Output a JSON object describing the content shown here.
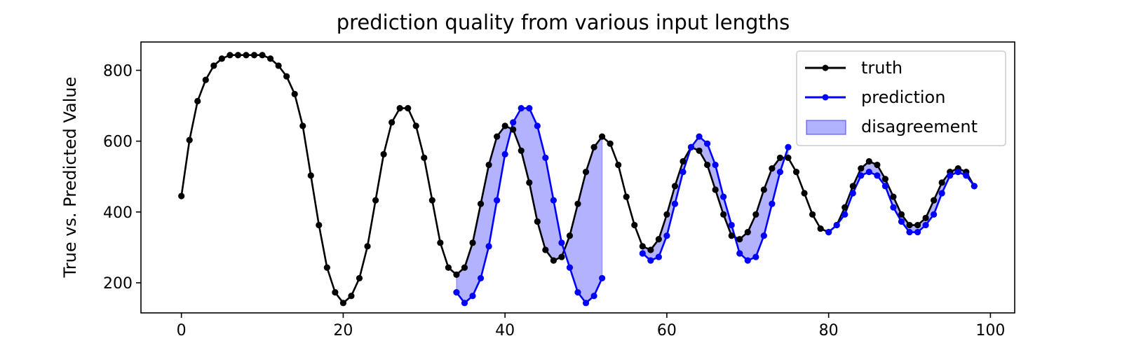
{
  "chart_data": {
    "type": "line",
    "title": "prediction quality from various input lengths",
    "xlabel": "",
    "ylabel": "True vs. Predicted Value",
    "xlim": [
      -5,
      103
    ],
    "ylim": [
      115,
      880
    ],
    "xticks": [
      0,
      20,
      40,
      60,
      80,
      100
    ],
    "yticks": [
      200,
      400,
      600,
      800
    ],
    "legend": {
      "placement": "upper-right",
      "entries": [
        "truth",
        "prediction",
        "disagreement"
      ]
    },
    "colors": {
      "truth": "#000000",
      "prediction": "#0000ff",
      "disagreement": "#0000ff"
    },
    "series": [
      {
        "name": "truth",
        "x": [
          0,
          1,
          2,
          3,
          4,
          5,
          6,
          7,
          8,
          9,
          10,
          11,
          12,
          13,
          14,
          15,
          16,
          17,
          18,
          19,
          20,
          21,
          22,
          23,
          24,
          25,
          26,
          27,
          28,
          29,
          30,
          31,
          32,
          33,
          34,
          35,
          36,
          37,
          38,
          39,
          40,
          41,
          42,
          43,
          44,
          45,
          46,
          47,
          48,
          49,
          50,
          51,
          52,
          53,
          54,
          55,
          56,
          57,
          58,
          59,
          60,
          61,
          62,
          63,
          64,
          65,
          66,
          67,
          68,
          69,
          70,
          71,
          72,
          73,
          74,
          75,
          76,
          77,
          78,
          79,
          80,
          81,
          82,
          83,
          84,
          85,
          86,
          87,
          88,
          89,
          90,
          91,
          92,
          93,
          94,
          95,
          96,
          97,
          98
        ],
        "y": [
          445,
          603,
          713,
          773,
          813,
          833,
          843,
          843,
          843,
          843,
          843,
          833,
          813,
          783,
          733,
          643,
          503,
          363,
          243,
          173,
          143,
          163,
          213,
          303,
          433,
          563,
          653,
          693,
          693,
          643,
          553,
          433,
          313,
          243,
          223,
          243,
          313,
          423,
          533,
          613,
          643,
          633,
          573,
          483,
          373,
          293,
          263,
          273,
          333,
          423,
          513,
          583,
          613,
          593,
          533,
          443,
          363,
          303,
          293,
          323,
          393,
          473,
          543,
          583,
          573,
          533,
          463,
          393,
          333,
          323,
          343,
          393,
          463,
          523,
          553,
          553,
          513,
          453,
          393,
          353,
          343,
          363,
          413,
          473,
          523,
          543,
          533,
          493,
          443,
          393,
          363,
          363,
          383,
          433,
          483,
          513,
          523,
          513,
          473
        ]
      },
      {
        "name": "prediction",
        "segments": [
          {
            "x": [
              34,
              35,
              36,
              37,
              38,
              39,
              40,
              41,
              42,
              43,
              44,
              45,
              46,
              47,
              48,
              49,
              50,
              51,
              52
            ],
            "y": [
              173,
              143,
              163,
              213,
              303,
              433,
              563,
              653,
              693,
              693,
              643,
              553,
              433,
              313,
              243,
              173,
              143,
              163,
              213
            ]
          },
          {
            "x": [
              57,
              58,
              59,
              60,
              61,
              62,
              63,
              64,
              65,
              66,
              67,
              68,
              69,
              70,
              71,
              72,
              73,
              74,
              75
            ],
            "y": [
              283,
              263,
              273,
              333,
              423,
              513,
              583,
              613,
              593,
              533,
              443,
              363,
              283,
              263,
              273,
              333,
              423,
              513,
              583
            ]
          },
          {
            "x": [
              80,
              81,
              82,
              83,
              84,
              85,
              86,
              87,
              88,
              89,
              90,
              91,
              92,
              93,
              94,
              95,
              96,
              97,
              98
            ],
            "y": [
              343,
              363,
              393,
              453,
              503,
              513,
              503,
              473,
              413,
              373,
              343,
              343,
              363,
              393,
              453,
              503,
              513,
              503,
              473
            ]
          }
        ]
      }
    ]
  }
}
